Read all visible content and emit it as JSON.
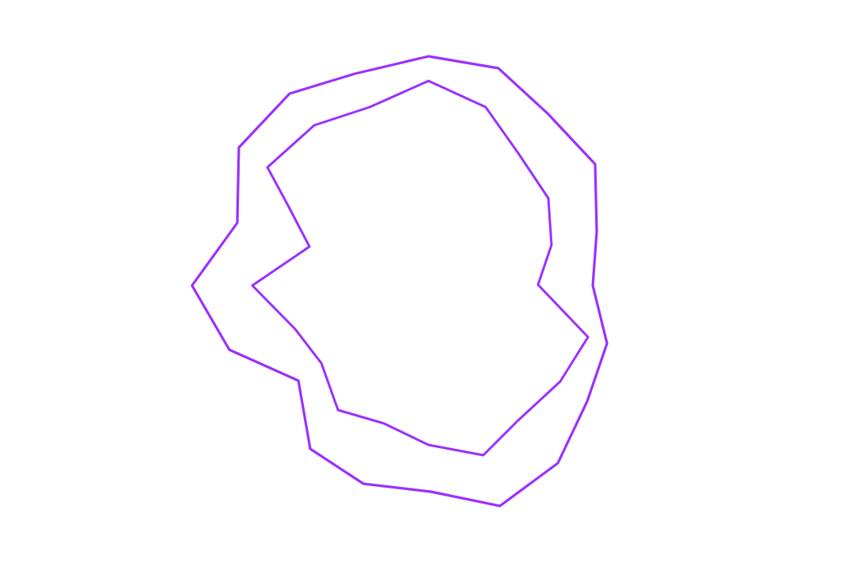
{
  "diagram": {
    "stroke_color": "#9b30ff",
    "background_color": "#ffffff",
    "shapes": [
      {
        "id": "outer-contour"
      },
      {
        "id": "inner-contour"
      }
    ]
  }
}
